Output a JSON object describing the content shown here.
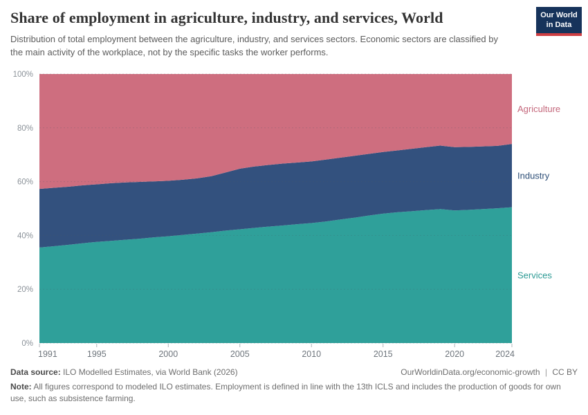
{
  "header": {
    "title": "Share of employment in agriculture, industry, and services, World",
    "subtitle": "Distribution of total employment between the agriculture, industry, and services sectors. Economic sectors are classified by the main activity of the workplace, not by the specific tasks the worker performs.",
    "logo": {
      "line1": "Our World",
      "line2": "in Data",
      "bg_color": "#16335B",
      "stripe_color": "#CE3E42"
    }
  },
  "chart_data": {
    "type": "area",
    "stacked": true,
    "title": "Share of employment in agriculture, industry, and services, World",
    "xlabel": "",
    "ylabel": "",
    "ylim": [
      0,
      100
    ],
    "yticks": [
      0,
      20,
      40,
      60,
      80,
      100
    ],
    "ytick_suffix": "%",
    "xticks": [
      1991,
      1995,
      2000,
      2005,
      2010,
      2015,
      2020,
      2024
    ],
    "grid": "dashed-horizontal",
    "legend_position": "right-edge-labels",
    "x": [
      1991,
      1992,
      1993,
      1994,
      1995,
      1996,
      1997,
      1998,
      1999,
      2000,
      2001,
      2002,
      2003,
      2004,
      2005,
      2006,
      2007,
      2008,
      2009,
      2010,
      2011,
      2012,
      2013,
      2014,
      2015,
      2016,
      2017,
      2018,
      2019,
      2020,
      2021,
      2022,
      2023,
      2024
    ],
    "series": [
      {
        "name": "Services",
        "color": "#2FA09A",
        "label_color": "#2C9A94",
        "values": [
          35.5,
          36.0,
          36.5,
          37.1,
          37.6,
          38.0,
          38.4,
          38.8,
          39.3,
          39.7,
          40.2,
          40.7,
          41.2,
          41.8,
          42.3,
          42.8,
          43.3,
          43.7,
          44.2,
          44.6,
          45.2,
          45.9,
          46.6,
          47.4,
          48.1,
          48.6,
          49.0,
          49.4,
          49.8,
          49.3,
          49.5,
          49.8,
          50.1,
          50.5
        ]
      },
      {
        "name": "Industry",
        "color": "#33517E",
        "label_color": "#2D4E77",
        "values": [
          21.8,
          21.7,
          21.6,
          21.5,
          21.4,
          21.4,
          21.3,
          21.1,
          20.8,
          20.6,
          20.5,
          20.5,
          20.8,
          21.6,
          22.5,
          22.8,
          22.9,
          23.0,
          22.9,
          22.9,
          23.0,
          23.0,
          23.0,
          22.9,
          22.9,
          23.0,
          23.2,
          23.4,
          23.6,
          23.5,
          23.4,
          23.3,
          23.2,
          23.5
        ]
      },
      {
        "name": "Agriculture",
        "color": "#CE6E7F",
        "label_color": "#C4677B",
        "values": [
          42.7,
          42.3,
          41.9,
          41.4,
          41.0,
          40.6,
          40.3,
          40.1,
          39.9,
          39.7,
          39.3,
          38.8,
          38.0,
          36.6,
          35.2,
          34.4,
          33.8,
          33.3,
          32.9,
          32.5,
          31.8,
          31.1,
          30.4,
          29.7,
          29.0,
          28.4,
          27.8,
          27.2,
          26.6,
          27.2,
          27.1,
          26.9,
          26.7,
          26.0
        ]
      }
    ]
  },
  "footer": {
    "data_source_label": "Data source:",
    "data_source_text": "ILO Modelled Estimates, via World Bank (2026)",
    "url": "OurWorldinData.org/economic-growth",
    "separator": "|",
    "license": "CC BY",
    "note_label": "Note:",
    "note_text": "All figures correspond to modeled ILO estimates. Employment is defined in line with the 13th ICLS and includes the production of goods for own use, such as subsistence farming."
  }
}
